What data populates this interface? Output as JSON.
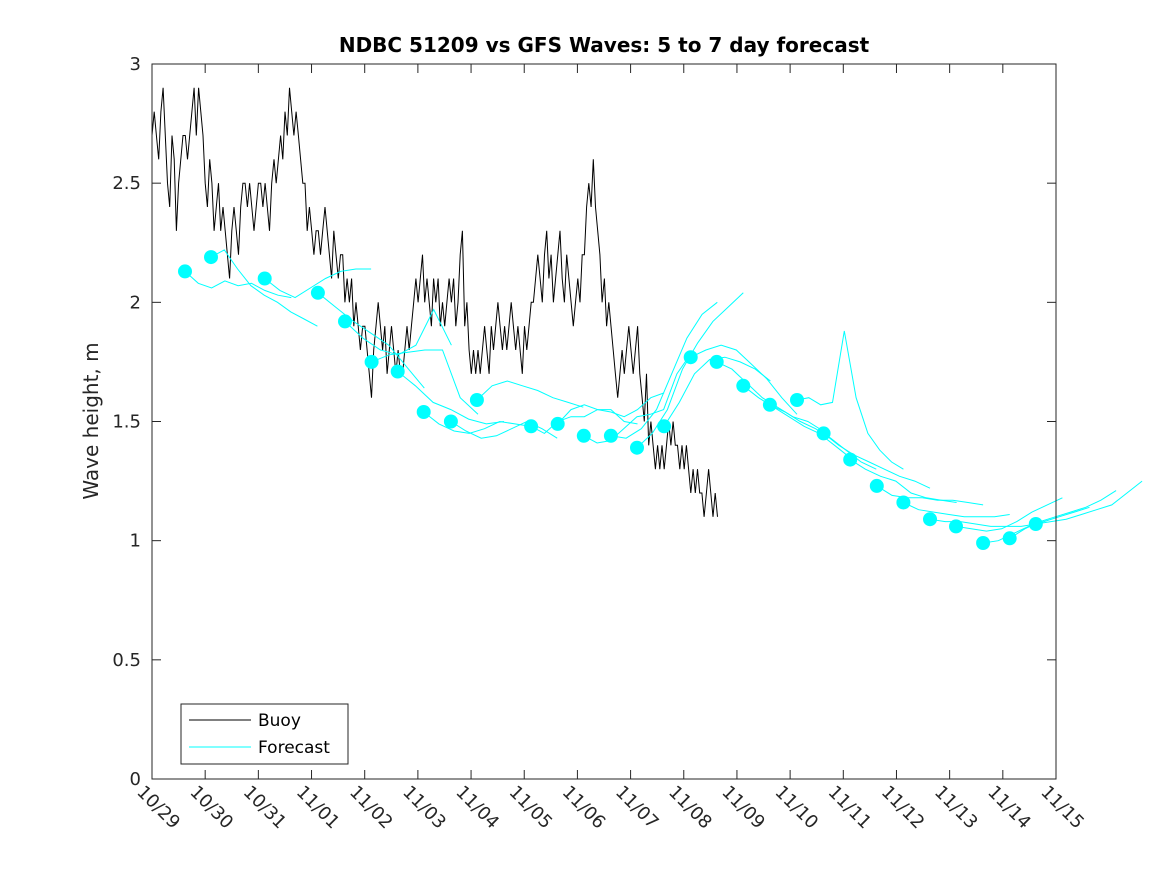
{
  "chart_data": {
    "type": "line",
    "title": "NDBC 51209 vs GFS Waves: 5 to 7 day forecast",
    "xlabel": "",
    "ylabel": "Wave height, m",
    "xlim_days": [
      0,
      17
    ],
    "ylim": [
      0,
      3
    ],
    "grid": false,
    "legend_position": "bottom-left",
    "x_tick_labels": [
      "10/29",
      "10/30",
      "10/31",
      "11/01",
      "11/02",
      "11/03",
      "11/04",
      "11/05",
      "11/06",
      "11/07",
      "11/08",
      "11/09",
      "11/10",
      "11/11",
      "11/12",
      "11/13",
      "11/14",
      "11/15"
    ],
    "y_ticks": [
      0,
      0.5,
      1,
      1.5,
      2,
      2.5,
      3
    ],
    "y_tick_labels": [
      "0",
      "0.5",
      "1",
      "1.5",
      "2",
      "2.5",
      "3"
    ],
    "colors": {
      "buoy": "#000000",
      "forecast": "#00ffff",
      "axis": "#262626"
    },
    "legend": [
      {
        "name": "Buoy",
        "color": "#000000"
      },
      {
        "name": "Forecast",
        "color": "#00ffff"
      }
    ],
    "buoy": {
      "name": "Buoy",
      "x_start_day": 0.0,
      "step_days": 0.0417,
      "values": [
        2.7,
        2.8,
        2.7,
        2.6,
        2.8,
        2.9,
        2.7,
        2.5,
        2.4,
        2.7,
        2.6,
        2.3,
        2.5,
        2.6,
        2.7,
        2.7,
        2.6,
        2.7,
        2.8,
        2.9,
        2.7,
        2.9,
        2.8,
        2.7,
        2.5,
        2.4,
        2.6,
        2.5,
        2.3,
        2.4,
        2.5,
        2.3,
        2.4,
        2.3,
        2.2,
        2.1,
        2.3,
        2.4,
        2.3,
        2.2,
        2.4,
        2.5,
        2.5,
        2.4,
        2.5,
        2.4,
        2.3,
        2.4,
        2.5,
        2.5,
        2.4,
        2.5,
        2.4,
        2.3,
        2.5,
        2.6,
        2.5,
        2.6,
        2.7,
        2.6,
        2.8,
        2.7,
        2.9,
        2.8,
        2.7,
        2.8,
        2.7,
        2.6,
        2.5,
        2.5,
        2.3,
        2.4,
        2.3,
        2.2,
        2.3,
        2.3,
        2.2,
        2.3,
        2.4,
        2.3,
        2.2,
        2.1,
        2.3,
        2.2,
        2.1,
        2.2,
        2.2,
        2.0,
        2.1,
        2.0,
        2.1,
        1.9,
        2.0,
        1.9,
        1.8,
        1.9,
        1.9,
        1.8,
        1.7,
        1.6,
        1.8,
        1.9,
        2.0,
        1.9,
        1.8,
        1.9,
        1.7,
        1.8,
        1.9,
        1.8,
        1.7,
        1.8,
        1.7,
        1.7,
        1.8,
        1.9,
        1.8,
        1.9,
        2.0,
        2.1,
        2.0,
        2.1,
        2.2,
        2.0,
        2.1,
        2.0,
        1.9,
        2.1,
        2.0,
        2.1,
        1.9,
        2.0,
        1.9,
        2.0,
        2.1,
        2.0,
        2.1,
        1.9,
        2.0,
        2.2,
        2.3,
        1.9,
        2.0,
        1.8,
        1.7,
        1.8,
        1.7,
        1.8,
        1.7,
        1.8,
        1.9,
        1.8,
        1.7,
        1.9,
        1.8,
        1.9,
        2.0,
        1.9,
        1.8,
        1.9,
        1.8,
        1.9,
        2.0,
        1.9,
        1.8,
        1.9,
        1.8,
        1.7,
        1.9,
        1.8,
        1.9,
        2.0,
        2.0,
        2.1,
        2.2,
        2.1,
        2.0,
        2.2,
        2.3,
        2.1,
        2.2,
        2.0,
        2.1,
        2.2,
        2.3,
        2.1,
        2.0,
        2.2,
        2.1,
        2.0,
        1.9,
        2.0,
        2.1,
        2.0,
        2.2,
        2.2,
        2.4,
        2.5,
        2.4,
        2.6,
        2.4,
        2.3,
        2.2,
        2.0,
        2.1,
        1.9,
        2.0,
        1.9,
        1.8,
        1.7,
        1.6,
        1.7,
        1.8,
        1.7,
        1.8,
        1.9,
        1.8,
        1.7,
        1.8,
        1.9,
        1.7,
        1.6,
        1.5,
        1.7,
        1.4,
        1.5,
        1.4,
        1.3,
        1.4,
        1.3,
        1.4,
        1.3,
        1.4,
        1.5,
        1.4,
        1.5,
        1.4,
        1.4,
        1.3,
        1.4,
        1.3,
        1.4,
        1.3,
        1.2,
        1.3,
        1.2,
        1.3,
        1.2,
        1.2,
        1.1,
        1.2,
        1.3,
        1.2,
        1.1,
        1.2,
        1.1
      ]
    },
    "forecast_points_day5": {
      "x_days": [
        0.62,
        1.11,
        2.12,
        3.12,
        3.63,
        4.13,
        4.62,
        5.11,
        5.62,
        6.11,
        7.13,
        7.63,
        8.12,
        8.63,
        9.12,
        9.63,
        10.13,
        10.62,
        11.12,
        11.62,
        12.13,
        12.63,
        13.13,
        13.63,
        14.13,
        14.63,
        15.12,
        15.63,
        16.13,
        16.62
      ],
      "values": [
        2.13,
        2.19,
        2.1,
        2.04,
        1.92,
        1.75,
        1.71,
        1.54,
        1.5,
        1.59,
        1.48,
        1.49,
        1.44,
        1.44,
        1.39,
        1.48,
        1.77,
        1.75,
        1.65,
        1.57,
        1.59,
        1.45,
        1.34,
        1.23,
        1.16,
        1.09,
        1.06,
        0.99,
        1.01,
        1.07
      ]
    },
    "forecast_tracks": [
      {
        "x_start_day": 0.62,
        "values": [
          2.13,
          2.08,
          2.06,
          2.09,
          2.07,
          2.08,
          2.05,
          2.03,
          2.02
        ]
      },
      {
        "x_start_day": 1.11,
        "values": [
          2.19,
          2.22,
          2.14,
          2.07,
          2.03,
          2.0,
          1.96,
          1.93,
          1.9
        ]
      },
      {
        "x_start_day": 2.12,
        "values": [
          2.1,
          2.05,
          2.02,
          2.06,
          2.1,
          2.13,
          2.14,
          2.14
        ]
      },
      {
        "x_start_day": 3.12,
        "values": [
          2.04,
          1.98,
          1.92,
          1.87,
          1.82,
          1.73,
          1.64
        ]
      },
      {
        "x_start_day": 3.63,
        "values": [
          1.92,
          1.85,
          1.8,
          1.78,
          1.82,
          1.97,
          1.82
        ]
      },
      {
        "x_start_day": 4.13,
        "values": [
          1.75,
          1.78,
          1.79,
          1.8,
          1.8,
          1.6,
          1.53
        ]
      },
      {
        "x_start_day": 4.62,
        "values": [
          1.71,
          1.65,
          1.58,
          1.55,
          1.51,
          1.49,
          1.5
        ]
      },
      {
        "x_start_day": 5.11,
        "values": [
          1.54,
          1.49,
          1.46,
          1.45,
          1.47,
          1.5,
          1.49,
          1.48
        ]
      },
      {
        "x_start_day": 5.62,
        "values": [
          1.5,
          1.46,
          1.43,
          1.44,
          1.47,
          1.5,
          1.47,
          1.43
        ]
      },
      {
        "x_start_day": 6.11,
        "values": [
          1.59,
          1.65,
          1.67,
          1.65,
          1.63,
          1.6,
          1.58,
          1.56
        ]
      },
      {
        "x_start_day": 7.13,
        "values": [
          1.48,
          1.45,
          1.5,
          1.52,
          1.52,
          1.55,
          1.55,
          1.5,
          1.49
        ]
      },
      {
        "x_start_day": 7.63,
        "values": [
          1.49,
          1.55,
          1.57,
          1.55,
          1.54,
          1.52,
          1.55,
          1.6,
          1.62
        ]
      },
      {
        "x_start_day": 8.12,
        "values": [
          1.44,
          1.41,
          1.42,
          1.47,
          1.52,
          1.53,
          1.55,
          1.7,
          1.78
        ]
      },
      {
        "x_start_day": 8.63,
        "values": [
          1.44,
          1.43,
          1.47,
          1.55,
          1.7,
          1.85,
          1.95,
          2.0
        ]
      },
      {
        "x_start_day": 9.12,
        "values": [
          1.39,
          1.45,
          1.55,
          1.72,
          1.83,
          1.92,
          1.98,
          2.04
        ]
      },
      {
        "x_start_day": 9.63,
        "values": [
          1.48,
          1.58,
          1.7,
          1.76,
          1.77,
          1.75,
          1.72,
          1.67
        ]
      },
      {
        "x_start_day": 10.13,
        "values": [
          1.77,
          1.8,
          1.82,
          1.8,
          1.74,
          1.68,
          1.6,
          1.53
        ]
      },
      {
        "x_start_day": 10.62,
        "values": [
          1.75,
          1.72,
          1.66,
          1.6,
          1.56,
          1.52,
          1.5,
          1.46
        ]
      },
      {
        "x_start_day": 11.12,
        "values": [
          1.65,
          1.6,
          1.56,
          1.52,
          1.48,
          1.45,
          1.4,
          1.35
        ]
      },
      {
        "x_start_day": 11.62,
        "values": [
          1.57,
          1.54,
          1.5,
          1.47,
          1.43,
          1.38,
          1.33,
          1.3
        ]
      },
      {
        "x_start_day": 12.13,
        "values": [
          1.59,
          1.6,
          1.57,
          1.58,
          1.88,
          1.6,
          1.45,
          1.38,
          1.33,
          1.3
        ]
      },
      {
        "x_start_day": 12.63,
        "values": [
          1.45,
          1.4,
          1.36,
          1.33,
          1.3,
          1.27,
          1.25,
          1.22
        ]
      },
      {
        "x_start_day": 13.13,
        "values": [
          1.34,
          1.3,
          1.27,
          1.25,
          1.2,
          1.18,
          1.17,
          1.16
        ]
      },
      {
        "x_start_day": 13.63,
        "values": [
          1.23,
          1.19,
          1.18,
          1.18,
          1.17,
          1.17,
          1.16,
          1.15
        ]
      },
      {
        "x_start_day": 14.13,
        "values": [
          1.16,
          1.13,
          1.12,
          1.11,
          1.1,
          1.1,
          1.1,
          1.11
        ]
      },
      {
        "x_start_day": 14.63,
        "values": [
          1.09,
          1.08,
          1.08,
          1.07,
          1.06,
          1.06,
          1.06,
          1.07
        ]
      },
      {
        "x_start_day": 15.12,
        "values": [
          1.06,
          1.05,
          1.04,
          1.05,
          1.08,
          1.12,
          1.15,
          1.18
        ]
      },
      {
        "x_start_day": 15.63,
        "values": [
          0.99,
          1.0,
          1.03,
          1.06,
          1.08,
          1.1,
          1.12,
          1.14
        ]
      },
      {
        "x_start_day": 16.13,
        "values": [
          1.01,
          1.05,
          1.08,
          1.1,
          1.12,
          1.14,
          1.17,
          1.21
        ]
      },
      {
        "x_start_day": 16.62,
        "values": [
          1.07,
          1.08,
          1.09,
          1.11,
          1.13,
          1.15,
          1.2,
          1.25
        ]
      }
    ]
  }
}
